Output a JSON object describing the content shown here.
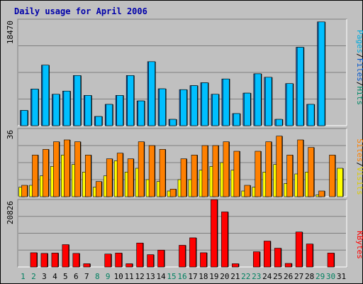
{
  "chart_data": [
    {
      "type": "bar",
      "title": "Daily usage for April 2006",
      "x": [
        "1",
        "2",
        "3",
        "4",
        "5",
        "6",
        "7",
        "8",
        "9",
        "10",
        "11",
        "12",
        "13",
        "14",
        "15",
        "16",
        "17",
        "18",
        "19",
        "20",
        "21",
        "22",
        "23",
        "24",
        "25",
        "26",
        "27",
        "28",
        "29",
        "30",
        "31"
      ],
      "weekend_days": [
        "1",
        "2",
        "8",
        "9",
        "15",
        "16",
        "22",
        "23",
        "29",
        "30"
      ],
      "ymax_label": "18470",
      "ymax": 18470,
      "right_labels": [
        {
          "text": "Pages",
          "color": "#00aadd"
        },
        {
          "text": "/",
          "color": "#000000"
        },
        {
          "text": "Files",
          "color": "#0055cc"
        },
        {
          "text": "/",
          "color": "#000000"
        },
        {
          "text": "Hits",
          "color": "#008866"
        }
      ],
      "series": [
        {
          "name": "Hits",
          "color": "#0c8fb0",
          "values": [
            0,
            0,
            0,
            0,
            0,
            0,
            0,
            0,
            0,
            0,
            0,
            0,
            0,
            0,
            0,
            0,
            0,
            0,
            0,
            0,
            0,
            0,
            0,
            0,
            0,
            0,
            0,
            0,
            0,
            0,
            0
          ]
        },
        {
          "name": "Files",
          "color": "#1565c0",
          "values": [
            2650,
            6350,
            10500,
            5450,
            6000,
            8700,
            5250,
            1600,
            3700,
            5250,
            8700,
            4300,
            11100,
            6400,
            1100,
            6250,
            6950,
            7450,
            5450,
            8100,
            2100,
            5650,
            9000,
            8400,
            1100,
            7300,
            13600,
            3700,
            18000,
            0,
            0
          ]
        },
        {
          "name": "Pages",
          "color": "#00bfff",
          "values": [
            2650,
            6350,
            10500,
            5450,
            6000,
            8700,
            5250,
            1600,
            3700,
            5250,
            8700,
            4300,
            11100,
            6400,
            1100,
            6250,
            6950,
            7450,
            5450,
            8100,
            2100,
            5650,
            9000,
            8400,
            1100,
            7300,
            13600,
            3700,
            18000,
            0,
            0
          ]
        }
      ]
    },
    {
      "type": "bar",
      "ymax_label": "36",
      "ymax": 36,
      "right_labels": [
        {
          "text": "Sites",
          "color": "#ff8000"
        },
        {
          "text": "/",
          "color": "#000000"
        },
        {
          "text": "Visits",
          "color": "#ddcc00"
        }
      ],
      "series": [
        {
          "name": "Visits",
          "color": "#ffff00",
          "values": [
            5,
            6,
            11,
            16,
            22,
            17,
            13,
            5,
            11,
            19,
            13,
            15,
            9,
            8,
            3,
            9,
            9,
            14,
            16,
            18,
            14,
            3,
            5,
            13,
            17,
            7,
            12,
            13,
            1,
            0,
            15
          ]
        },
        {
          "name": "Sites",
          "color": "#ff8000",
          "values": [
            6,
            22,
            25,
            29,
            30,
            29,
            22,
            8,
            20,
            23,
            20,
            29,
            27,
            25,
            4,
            20,
            22,
            27,
            27,
            29,
            24,
            6,
            24,
            29,
            32,
            22,
            30,
            26,
            3,
            22,
            0
          ]
        }
      ]
    },
    {
      "type": "bar",
      "ymax_label": "20826",
      "ymax": 20826,
      "right_labels": [
        {
          "text": "KBytes",
          "color": "#ff0000"
        }
      ],
      "series": [
        {
          "name": "KBytes",
          "color": "#ff0000",
          "values": [
            0,
            4400,
            4200,
            4300,
            6900,
            4200,
            1000,
            0,
            4000,
            4300,
            1000,
            7400,
            3800,
            5200,
            0,
            6700,
            9000,
            4400,
            20800,
            17000,
            1000,
            0,
            4700,
            8000,
            5800,
            1100,
            10800,
            7100,
            0,
            4300,
            0
          ]
        }
      ]
    }
  ]
}
